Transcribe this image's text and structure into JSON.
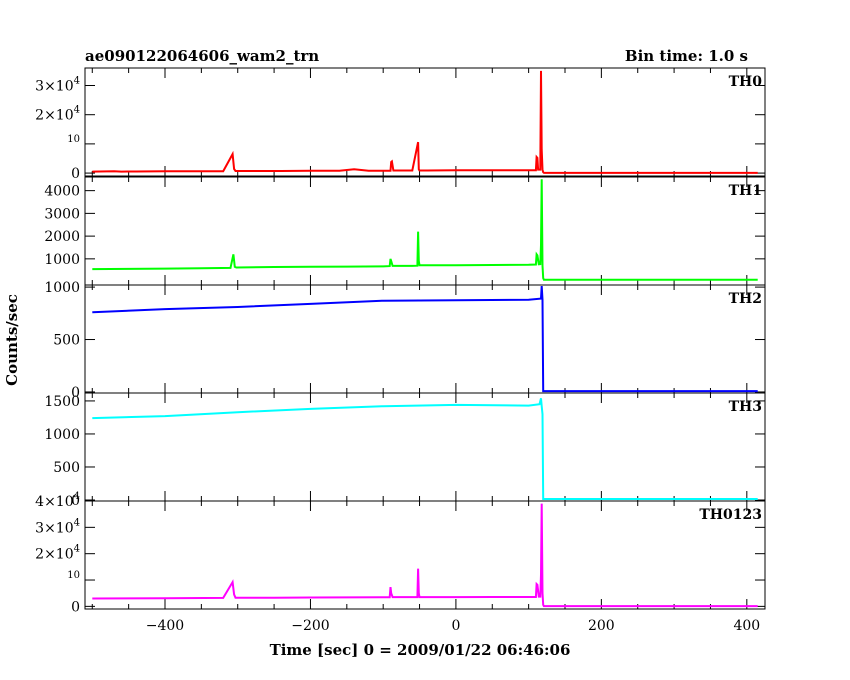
{
  "header": {
    "title": "ae090122064606_wam2_trn",
    "bin_time": "Bin time: 1.0 s"
  },
  "chart_data": {
    "type": "line",
    "title": "ae090122064606_wam2_trn",
    "xlabel": "Time [sec] 0 = 2009/01/22 06:46:06",
    "ylabel": "Counts/sec",
    "xlim": [
      -510,
      425
    ],
    "x_ticks": [
      -400,
      -200,
      0,
      200,
      400
    ],
    "grid": false,
    "panels": [
      {
        "name": "TH0",
        "color": "#ff0000",
        "ylim": [
          -1000,
          36000
        ],
        "y_ticks": [
          0,
          10000,
          20000,
          30000
        ],
        "y_tick_labels": [
          {
            "base": "0",
            "sup": ""
          },
          {
            "base": "",
            "sup": "10"
          },
          {
            "base": "2×10",
            "sup": "4"
          },
          {
            "base": "3×10",
            "sup": "4"
          }
        ],
        "series": [
          {
            "x": [
              -500,
              -470,
              -460,
              -440,
              -400,
              -360,
              -320,
              -307,
              -305,
              -303,
              -290,
              -240,
              -200,
              -160,
              -140,
              -120,
              -90,
              -89,
              -88,
              -86,
              -60,
              -52,
              -51,
              -50,
              -40,
              0,
              40,
              80,
              110,
              111,
              112,
              113,
              116,
              117,
              118,
              119,
              120,
              121,
              122,
              124,
              200,
              300,
              400,
              415
            ],
            "y": [
              500,
              600,
              500,
              550,
              600,
              600,
              650,
              6500,
              1400,
              700,
              700,
              700,
              800,
              800,
              1300,
              800,
              800,
              3800,
              4000,
              900,
              900,
              10600,
              1300,
              900,
              900,
              1000,
              1000,
              1000,
              1000,
              5500,
              5200,
              1200,
              1200,
              35000,
              8000,
              1200,
              300,
              80,
              50,
              50,
              50,
              50,
              50,
              50
            ]
          }
        ]
      },
      {
        "name": "TH1",
        "color": "#00ff00",
        "ylim": [
          -150,
          4600
        ],
        "y_ticks": [
          1000,
          2000,
          3000,
          4000
        ],
        "y_tick_labels": [
          {
            "base": "1000",
            "sup": ""
          },
          {
            "base": "2000",
            "sup": ""
          },
          {
            "base": "3000",
            "sup": ""
          },
          {
            "base": "4000",
            "sup": ""
          }
        ],
        "series": [
          {
            "x": [
              -500,
              -450,
              -400,
              -350,
              -310,
              -306,
              -304,
              -302,
              -250,
              -200,
              -150,
              -100,
              -91,
              -90,
              -89,
              -87,
              -60,
              -53,
              -52,
              -51,
              -50,
              -30,
              0,
              50,
              100,
              110,
              111,
              112,
              114,
              116,
              117,
              118,
              119,
              120,
              121,
              122,
              200,
              300,
              400,
              415
            ],
            "y": [
              550,
              560,
              570,
              590,
              600,
              1200,
              650,
              620,
              640,
              650,
              660,
              670,
              680,
              1000,
              900,
              690,
              690,
              700,
              2200,
              900,
              720,
              720,
              720,
              730,
              740,
              750,
              1200,
              1150,
              760,
              770,
              1600,
              4500,
              700,
              150,
              80,
              80,
              80,
              80,
              80,
              80
            ]
          }
        ]
      },
      {
        "name": "TH2",
        "color": "#0000ff",
        "ylim": [
          -10,
          1020
        ],
        "y_ticks": [
          0,
          500,
          1000
        ],
        "y_tick_labels": [
          {
            "base": "0",
            "sup": ""
          },
          {
            "base": "500",
            "sup": ""
          },
          {
            "base": "1000",
            "sup": ""
          }
        ],
        "series": [
          {
            "x": [
              -500,
              -400,
              -300,
              -200,
              -100,
              0,
              100,
              117,
              118,
              119,
              120,
              200,
              300,
              415
            ],
            "y": [
              760,
              790,
              810,
              840,
              870,
              875,
              880,
              890,
              1010,
              880,
              8,
              8,
              8,
              8
            ]
          }
        ]
      },
      {
        "name": "TH3",
        "color": "#00ffff",
        "ylim": [
          -15,
          1620
        ],
        "y_ticks": [
          0,
          500,
          1000,
          1500
        ],
        "y_tick_labels": [
          {
            "base": "0",
            "sup": ""
          },
          {
            "base": "500",
            "sup": ""
          },
          {
            "base": "1000",
            "sup": ""
          },
          {
            "base": "1500",
            "sup": ""
          }
        ],
        "series": [
          {
            "x": [
              -500,
              -400,
              -300,
              -200,
              -100,
              0,
              100,
              115,
              117,
              118,
              119,
              120,
              200,
              300,
              415
            ],
            "y": [
              1240,
              1270,
              1330,
              1380,
              1420,
              1440,
              1430,
              1450,
              1540,
              1420,
              1300,
              15,
              15,
              15,
              15
            ]
          }
        ]
      },
      {
        "name": "TH0123",
        "color": "#ff00ff",
        "ylim": [
          -1000,
          40000
        ],
        "y_ticks": [
          0,
          10000,
          20000,
          30000,
          40000
        ],
        "y_tick_labels": [
          {
            "base": "0",
            "sup": ""
          },
          {
            "base": "",
            "sup": "10"
          },
          {
            "base": "2×10",
            "sup": "4"
          },
          {
            "base": "3×10",
            "sup": "4"
          },
          {
            "base": "4×10",
            "sup": "4"
          }
        ],
        "series": [
          {
            "x": [
              -500,
              -400,
              -320,
              -307,
              -305,
              -303,
              -250,
              -200,
              -150,
              -100,
              -91,
              -90,
              -89,
              -87,
              -60,
              -53,
              -52,
              -51,
              -50,
              -30,
              0,
              50,
              100,
              110,
              111,
              112,
              114,
              116,
              117,
              118,
              119,
              120,
              121,
              122,
              200,
              300,
              400,
              415
            ],
            "y": [
              3000,
              3100,
              3200,
              9200,
              4500,
              3300,
              3300,
              3350,
              3400,
              3450,
              3450,
              7300,
              5000,
              3500,
              3500,
              3500,
              14300,
              5000,
              3500,
              3500,
              3500,
              3550,
              3550,
              3550,
              8500,
              8200,
              3700,
              3700,
              12000,
              39000,
              5000,
              600,
              100,
              100,
              100,
              100,
              100,
              100
            ]
          }
        ]
      }
    ]
  }
}
